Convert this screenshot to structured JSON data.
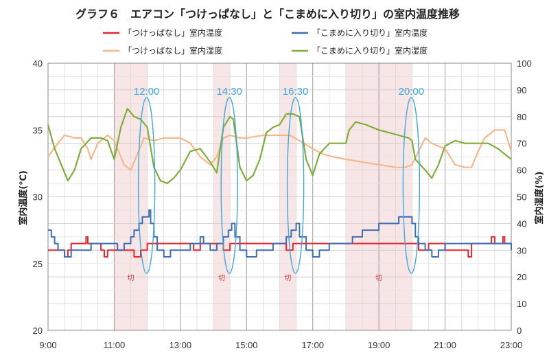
{
  "chart_data": {
    "type": "line",
    "title": "グラフ６　エアコン「つけっぱなし」と「こまめに入り切り」の室内温度推移",
    "xlabel": "",
    "ylabel_left": "室内温度(℃)",
    "ylabel_right": "室内湿度(%)",
    "x_ticks": [
      "9:00",
      "11:00",
      "13:00",
      "15:00",
      "17:00",
      "19:00",
      "21:00",
      "23:00"
    ],
    "x_range_hours": [
      9,
      23
    ],
    "ylim_left": [
      20,
      40
    ],
    "y_ticks_left": [
      "20",
      "25",
      "30",
      "35",
      "40"
    ],
    "ylim_right": [
      0,
      100
    ],
    "y_ticks_right": [
      "0",
      "10",
      "20",
      "30",
      "40",
      "50",
      "60",
      "70",
      "80",
      "90",
      "100"
    ],
    "grid": true,
    "legend_position": "top",
    "off_periods": [
      [
        11.0,
        12.0
      ],
      [
        14.0,
        14.5
      ],
      [
        16.0,
        16.5
      ],
      [
        18.0,
        20.0
      ]
    ],
    "off_label": "切",
    "annotations": [
      "12:00",
      "14:30",
      "16:30",
      "20:00"
    ],
    "annotation_hours": [
      12.0,
      14.5,
      16.5,
      20.0
    ],
    "series": [
      {
        "name": "「つけっぱなし」室内温度",
        "axis": "left",
        "color": "#e8242c",
        "points": [
          [
            9.0,
            26.0
          ],
          [
            9.3,
            26.0
          ],
          [
            9.5,
            25.5
          ],
          [
            9.6,
            26.0
          ],
          [
            9.7,
            26.5
          ],
          [
            10.0,
            26.5
          ],
          [
            10.15,
            27.0
          ],
          [
            10.2,
            26.5
          ],
          [
            10.5,
            26.5
          ],
          [
            10.6,
            26.0
          ],
          [
            10.7,
            25.5
          ],
          [
            10.8,
            26.0
          ],
          [
            11.0,
            26.0
          ],
          [
            11.5,
            26.0
          ],
          [
            11.6,
            25.5
          ],
          [
            11.8,
            26.0
          ],
          [
            12.0,
            26.5
          ],
          [
            13.0,
            26.5
          ],
          [
            13.3,
            26.5
          ],
          [
            13.4,
            26.0
          ],
          [
            13.6,
            26.5
          ],
          [
            14.0,
            26.5
          ],
          [
            14.3,
            26.0
          ],
          [
            14.5,
            26.5
          ],
          [
            15.0,
            26.5
          ],
          [
            16.0,
            26.5
          ],
          [
            16.2,
            26.0
          ],
          [
            16.4,
            26.5
          ],
          [
            17.0,
            26.5
          ],
          [
            18.0,
            26.5
          ],
          [
            19.0,
            26.5
          ],
          [
            19.5,
            26.5
          ],
          [
            20.0,
            26.5
          ],
          [
            20.2,
            26.0
          ],
          [
            20.5,
            26.5
          ],
          [
            21.0,
            26.0
          ],
          [
            21.5,
            26.0
          ],
          [
            21.7,
            25.5
          ],
          [
            21.8,
            26.5
          ],
          [
            22.0,
            26.5
          ],
          [
            22.3,
            26.5
          ],
          [
            22.4,
            27.0
          ],
          [
            22.5,
            26.5
          ],
          [
            22.7,
            26.5
          ],
          [
            22.75,
            27.0
          ],
          [
            22.8,
            26.5
          ],
          [
            23.0,
            26.5
          ]
        ]
      },
      {
        "name": "「こまめに入り切り」室内温度",
        "axis": "left",
        "color": "#3d6db3",
        "points": [
          [
            9.0,
            27.5
          ],
          [
            9.1,
            27.0
          ],
          [
            9.2,
            26.5
          ],
          [
            9.3,
            26.0
          ],
          [
            9.5,
            25.5
          ],
          [
            9.7,
            26.0
          ],
          [
            10.0,
            26.0
          ],
          [
            10.3,
            26.5
          ],
          [
            10.5,
            26.5
          ],
          [
            10.8,
            26.5
          ],
          [
            11.0,
            26.5
          ],
          [
            11.1,
            26.0
          ],
          [
            11.3,
            26.5
          ],
          [
            11.5,
            27.0
          ],
          [
            11.6,
            27.5
          ],
          [
            11.75,
            28.0
          ],
          [
            11.85,
            28.5
          ],
          [
            12.0,
            28.5
          ],
          [
            12.05,
            29.0
          ],
          [
            12.1,
            28.0
          ],
          [
            12.2,
            27.0
          ],
          [
            12.3,
            26.0
          ],
          [
            12.5,
            25.5
          ],
          [
            12.7,
            26.0
          ],
          [
            13.0,
            26.0
          ],
          [
            13.3,
            26.5
          ],
          [
            13.5,
            26.5
          ],
          [
            13.6,
            27.0
          ],
          [
            13.7,
            26.5
          ],
          [
            13.9,
            26.0
          ],
          [
            14.0,
            26.0
          ],
          [
            14.1,
            26.5
          ],
          [
            14.3,
            27.0
          ],
          [
            14.45,
            27.5
          ],
          [
            14.55,
            28.0
          ],
          [
            14.65,
            27.0
          ],
          [
            14.8,
            26.0
          ],
          [
            15.0,
            25.5
          ],
          [
            15.3,
            26.0
          ],
          [
            15.6,
            26.0
          ],
          [
            15.8,
            26.5
          ],
          [
            16.0,
            26.5
          ],
          [
            16.1,
            26.5
          ],
          [
            16.2,
            27.0
          ],
          [
            16.35,
            27.5
          ],
          [
            16.5,
            28.0
          ],
          [
            16.6,
            27.0
          ],
          [
            16.8,
            26.0
          ],
          [
            17.0,
            25.5
          ],
          [
            17.2,
            26.0
          ],
          [
            17.5,
            26.5
          ],
          [
            18.0,
            26.5
          ],
          [
            18.2,
            27.0
          ],
          [
            18.5,
            27.5
          ],
          [
            18.9,
            27.5
          ],
          [
            19.0,
            28.0
          ],
          [
            19.4,
            28.0
          ],
          [
            19.6,
            28.5
          ],
          [
            19.9,
            28.5
          ],
          [
            20.0,
            28.0
          ],
          [
            20.1,
            27.0
          ],
          [
            20.2,
            26.5
          ],
          [
            20.4,
            26.0
          ],
          [
            20.6,
            25.5
          ],
          [
            20.8,
            26.0
          ],
          [
            21.0,
            26.5
          ],
          [
            21.5,
            26.5
          ],
          [
            22.0,
            26.5
          ],
          [
            22.5,
            26.5
          ],
          [
            22.9,
            26.5
          ],
          [
            23.0,
            26.0
          ]
        ]
      },
      {
        "name": "「つけっぱなし」室内湿度",
        "axis": "right",
        "color": "#f5b88a",
        "points": [
          [
            9.0,
            65
          ],
          [
            9.3,
            70
          ],
          [
            9.5,
            73
          ],
          [
            9.8,
            72
          ],
          [
            10.0,
            72
          ],
          [
            10.2,
            68
          ],
          [
            10.3,
            64
          ],
          [
            10.5,
            70
          ],
          [
            10.8,
            73
          ],
          [
            11.0,
            71
          ],
          [
            11.1,
            68
          ],
          [
            11.3,
            62
          ],
          [
            11.5,
            60
          ],
          [
            11.7,
            66
          ],
          [
            11.9,
            72
          ],
          [
            12.2,
            71
          ],
          [
            12.5,
            72
          ],
          [
            13.0,
            72
          ],
          [
            13.3,
            70
          ],
          [
            13.6,
            65
          ],
          [
            13.9,
            62
          ],
          [
            14.1,
            65
          ],
          [
            14.3,
            72
          ],
          [
            14.5,
            73
          ],
          [
            14.8,
            72
          ],
          [
            15.0,
            72
          ],
          [
            15.5,
            73
          ],
          [
            16.0,
            73
          ],
          [
            16.3,
            73
          ],
          [
            16.6,
            71
          ],
          [
            17.0,
            68
          ],
          [
            17.3,
            66
          ],
          [
            17.6,
            65
          ],
          [
            18.0,
            64
          ],
          [
            18.5,
            63
          ],
          [
            19.0,
            62
          ],
          [
            19.5,
            61
          ],
          [
            19.8,
            61
          ],
          [
            20.0,
            62
          ],
          [
            20.2,
            67
          ],
          [
            20.4,
            72
          ],
          [
            20.6,
            70
          ],
          [
            21.0,
            68
          ],
          [
            21.3,
            62
          ],
          [
            21.6,
            61
          ],
          [
            21.8,
            61
          ],
          [
            22.0,
            67
          ],
          [
            22.2,
            72
          ],
          [
            22.5,
            75
          ],
          [
            22.8,
            75
          ],
          [
            23.0,
            67
          ]
        ]
      },
      {
        "name": "「こまめに入り切り」室内湿度",
        "axis": "right",
        "color": "#7fad3a",
        "points": [
          [
            9.0,
            77
          ],
          [
            9.2,
            68
          ],
          [
            9.4,
            62
          ],
          [
            9.6,
            56
          ],
          [
            9.8,
            60
          ],
          [
            10.0,
            68
          ],
          [
            10.3,
            72
          ],
          [
            10.6,
            72
          ],
          [
            10.8,
            71
          ],
          [
            11.0,
            64
          ],
          [
            11.2,
            76
          ],
          [
            11.4,
            83
          ],
          [
            11.6,
            80
          ],
          [
            11.8,
            79
          ],
          [
            12.0,
            76
          ],
          [
            12.2,
            61
          ],
          [
            12.4,
            56
          ],
          [
            12.6,
            55
          ],
          [
            12.8,
            57
          ],
          [
            13.0,
            60
          ],
          [
            13.3,
            67
          ],
          [
            13.6,
            68
          ],
          [
            13.9,
            63
          ],
          [
            14.1,
            59
          ],
          [
            14.3,
            76
          ],
          [
            14.5,
            80
          ],
          [
            14.6,
            79
          ],
          [
            14.8,
            61
          ],
          [
            15.0,
            56
          ],
          [
            15.2,
            58
          ],
          [
            15.4,
            64
          ],
          [
            15.6,
            74
          ],
          [
            15.8,
            76
          ],
          [
            16.0,
            77
          ],
          [
            16.2,
            81
          ],
          [
            16.4,
            81
          ],
          [
            16.6,
            80
          ],
          [
            16.8,
            64
          ],
          [
            17.0,
            58
          ],
          [
            17.2,
            66
          ],
          [
            17.5,
            70
          ],
          [
            18.0,
            70
          ],
          [
            18.1,
            75
          ],
          [
            18.3,
            78
          ],
          [
            18.6,
            77
          ],
          [
            19.0,
            75
          ],
          [
            19.3,
            74
          ],
          [
            19.6,
            73
          ],
          [
            19.9,
            72
          ],
          [
            20.0,
            71
          ],
          [
            20.1,
            64
          ],
          [
            20.4,
            60
          ],
          [
            20.6,
            57
          ],
          [
            20.8,
            62
          ],
          [
            21.0,
            69
          ],
          [
            21.3,
            71
          ],
          [
            21.6,
            70
          ],
          [
            22.0,
            70
          ],
          [
            22.3,
            70
          ],
          [
            22.6,
            68
          ],
          [
            22.8,
            66
          ],
          [
            23.0,
            64
          ]
        ]
      }
    ]
  }
}
